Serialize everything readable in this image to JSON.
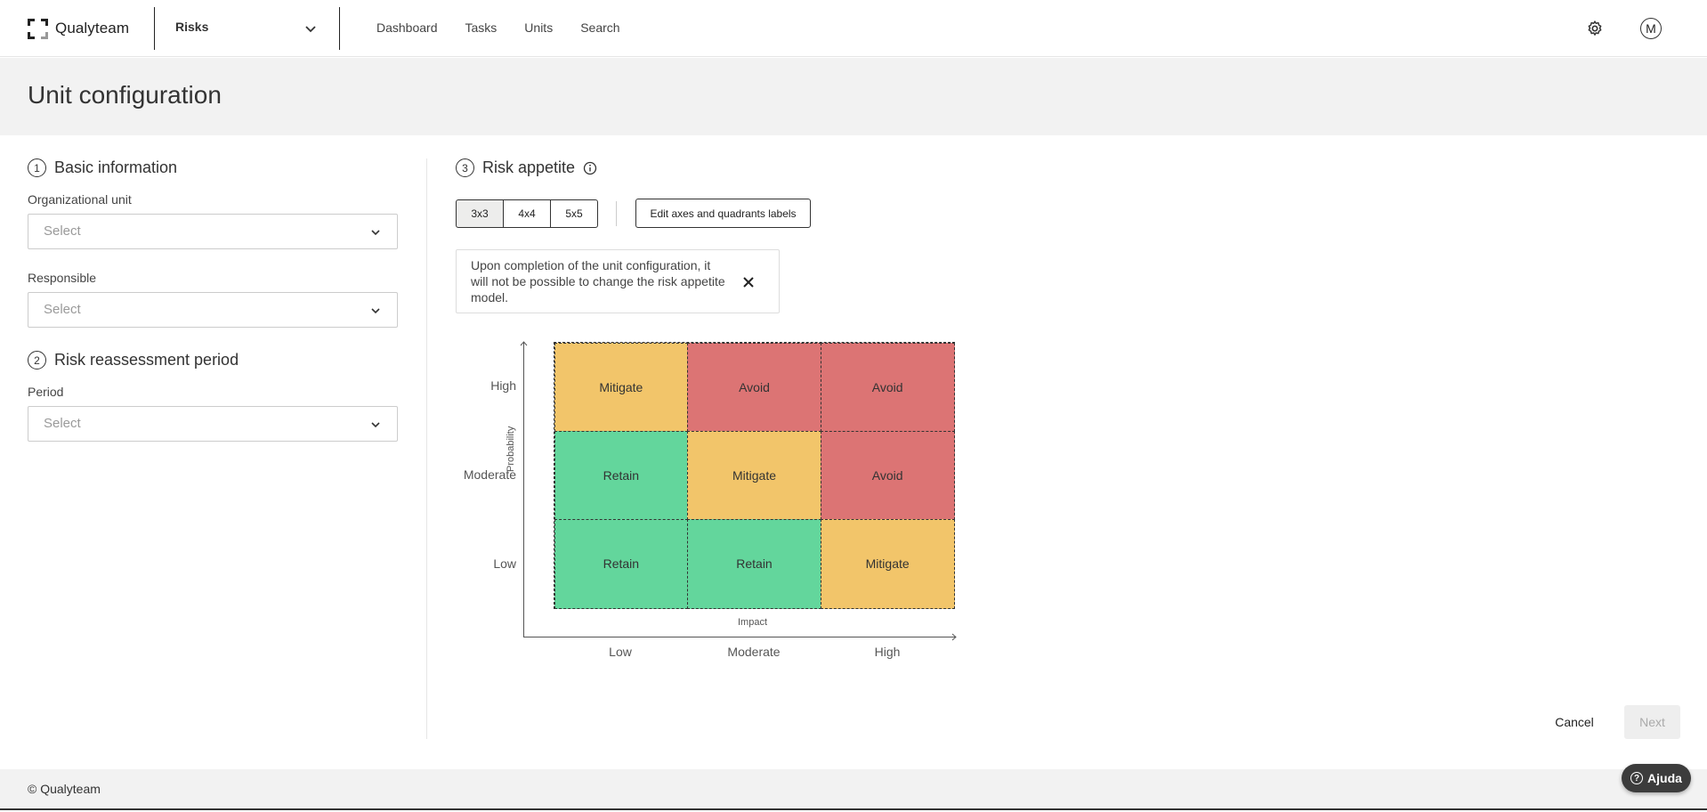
{
  "app": {
    "logo_text": "Qualyteam",
    "module": "Risks",
    "nav": [
      "Dashboard",
      "Tasks",
      "Units",
      "Search"
    ],
    "avatar_initial": "M"
  },
  "page": {
    "title": "Unit configuration"
  },
  "basic_info": {
    "number": "1",
    "title": "Basic information",
    "org_unit_label": "Organizational unit",
    "org_unit_placeholder": "Select",
    "responsible_label": "Responsible",
    "responsible_placeholder": "Select"
  },
  "reassessment": {
    "number": "2",
    "title": "Risk reassessment period",
    "period_label": "Period",
    "period_placeholder": "Select"
  },
  "risk_appetite": {
    "number": "3",
    "title": "Risk appetite",
    "sizes": [
      "3x3",
      "4x4",
      "5x5"
    ],
    "selected_size": "3x3",
    "edit_button": "Edit axes and quadrants labels",
    "notice": "Upon completion of the unit configuration, it will not be possible to change the risk appetite model.",
    "y_axis_title": "Probability",
    "x_axis_title": "Impact",
    "y_levels": [
      "High",
      "Moderate",
      "Low"
    ],
    "x_levels": [
      "Low",
      "Moderate",
      "High"
    ],
    "matrix": [
      [
        "Mitigate",
        "Avoid",
        "Avoid"
      ],
      [
        "Retain",
        "Mitigate",
        "Avoid"
      ],
      [
        "Retain",
        "Retain",
        "Mitigate"
      ]
    ],
    "colors": {
      "Mitigate": "#f2c56a",
      "Avoid": "#dc7474",
      "Retain": "#63d69c"
    }
  },
  "actions": {
    "cancel": "Cancel",
    "next": "Next"
  },
  "footer": {
    "copyright": "© Qualyteam",
    "help": "Ajuda"
  }
}
